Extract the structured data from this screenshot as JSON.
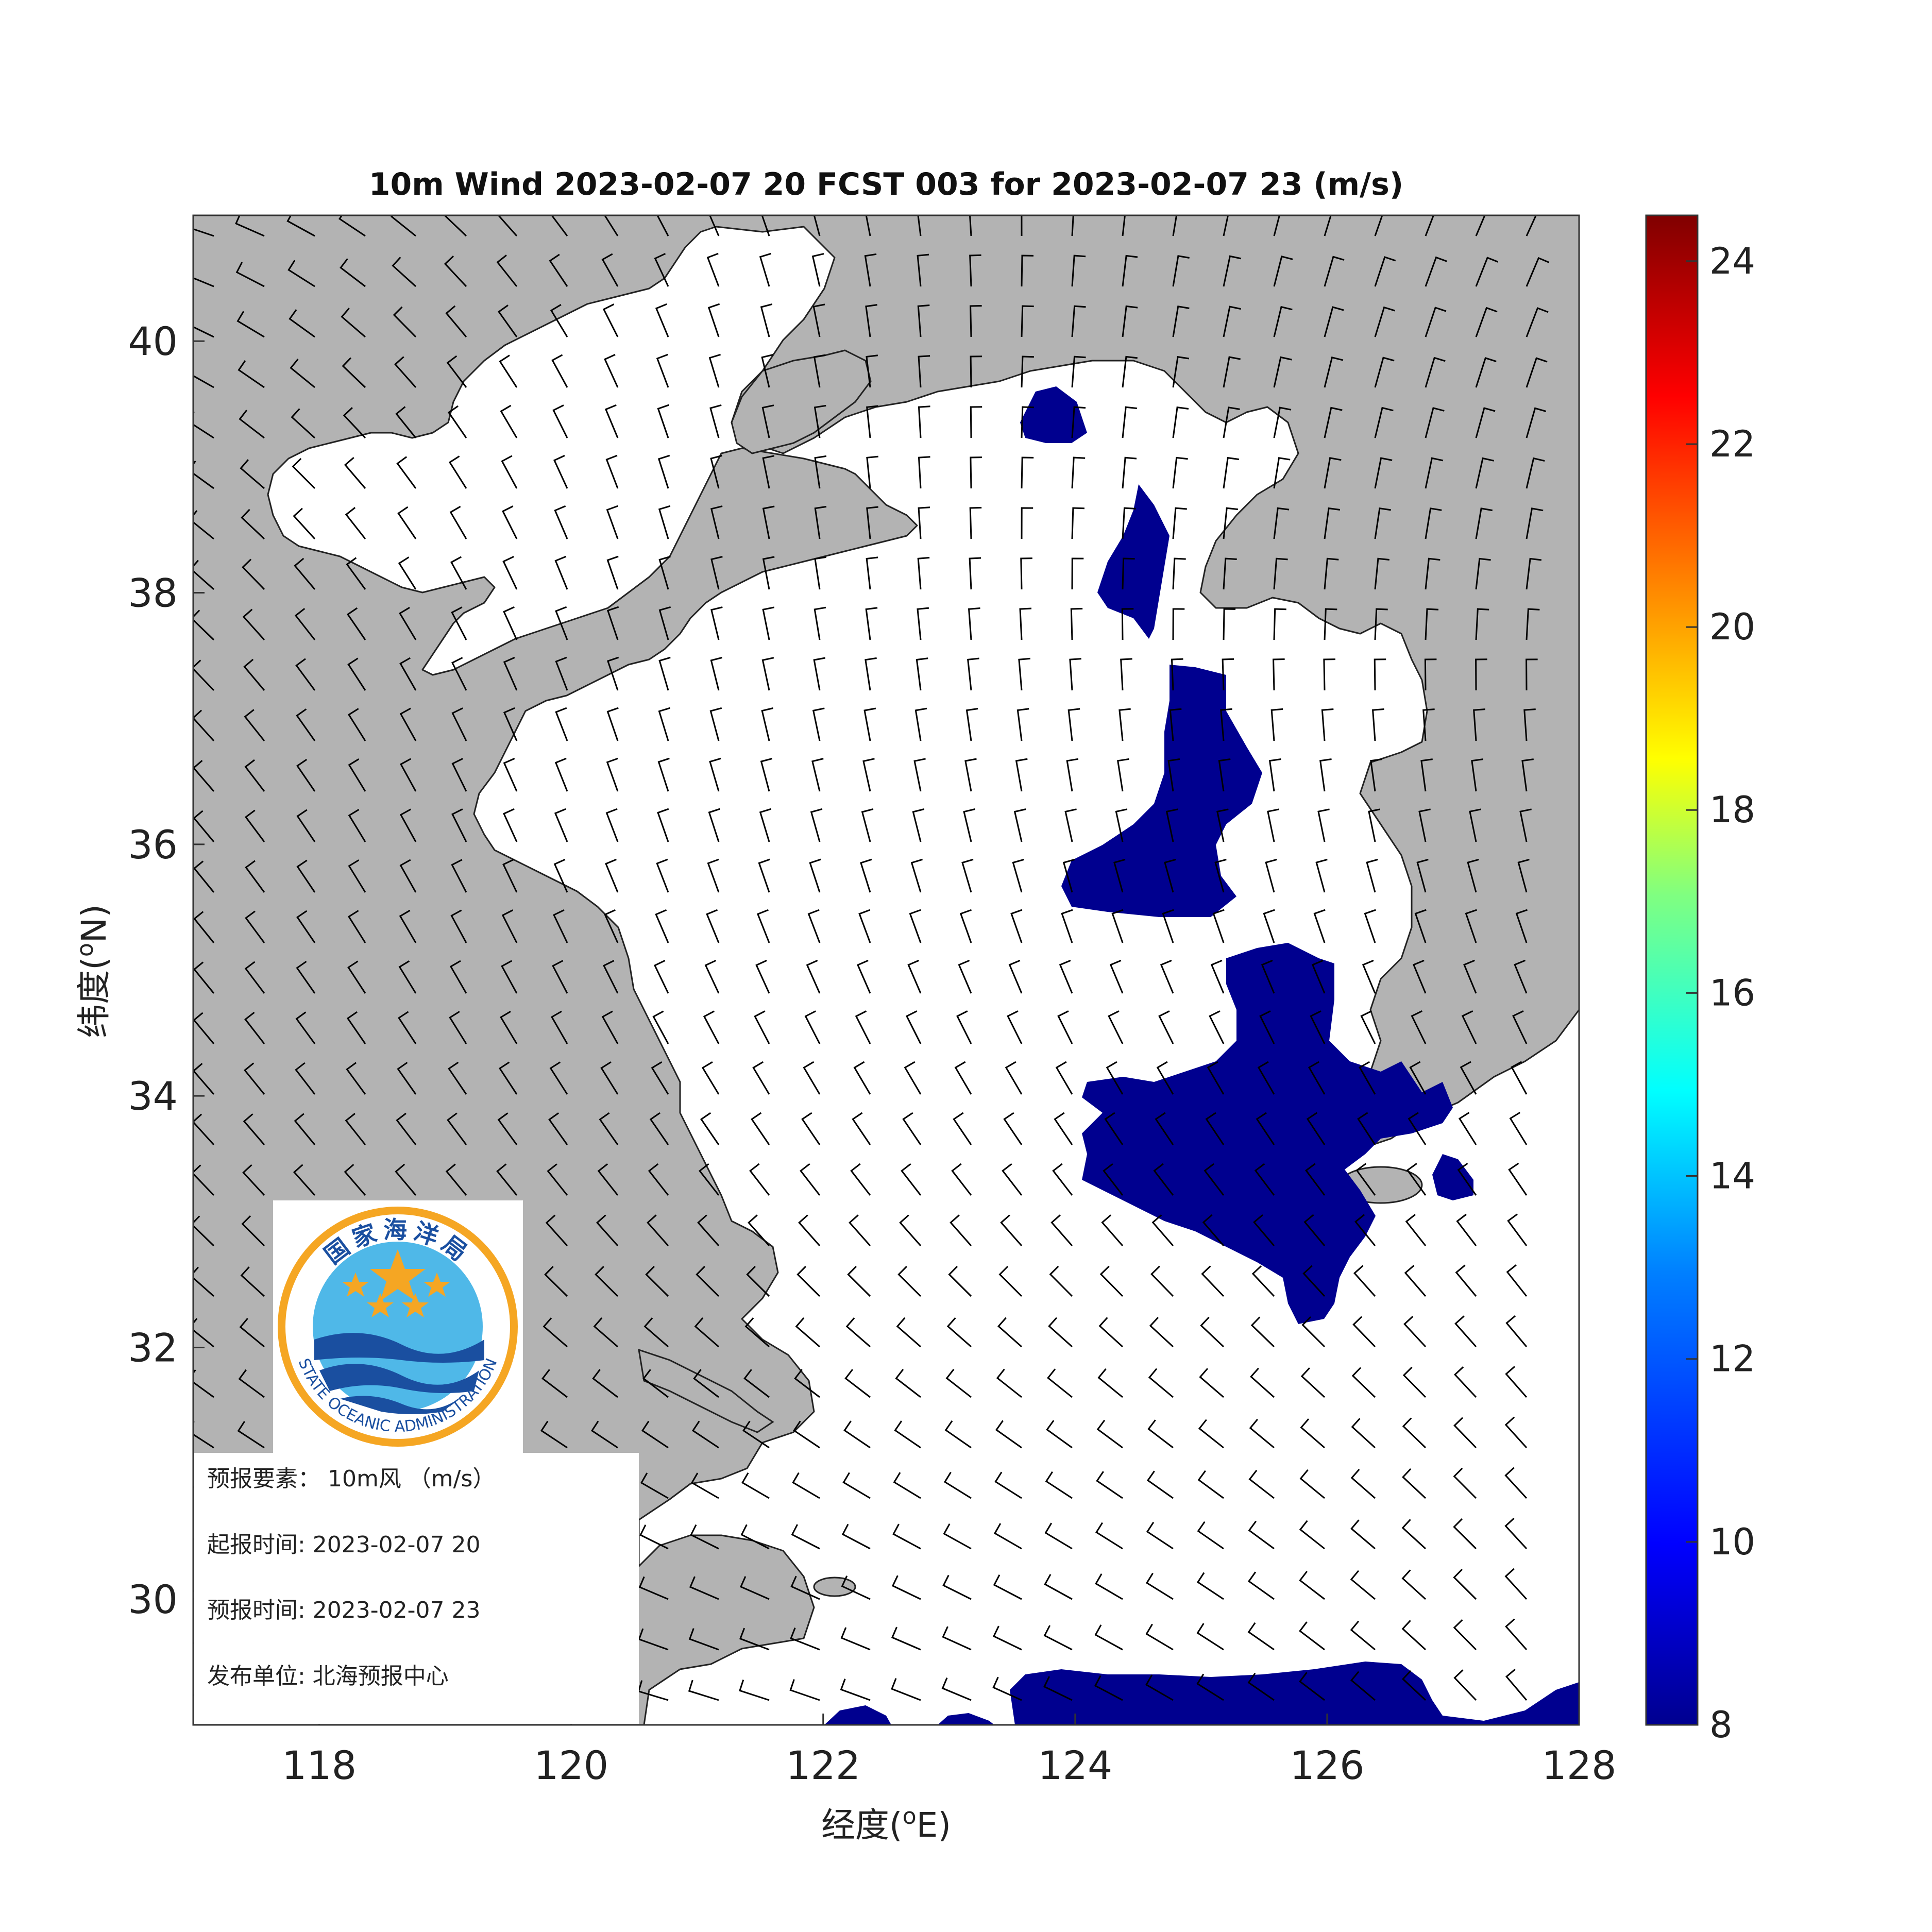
{
  "title": "10m Wind 2023-02-07 20 FCST 003 for 2023-02-07 23 (m/s)",
  "axes": {
    "xlabel": "经度(",
    "xlabel_sup": "o",
    "xlabel_end": "E)",
    "ylabel": "纬度(",
    "ylabel_sup": "o",
    "ylabel_end": "N)",
    "x_ticks": [
      "118",
      "120",
      "122",
      "124",
      "126",
      "128"
    ],
    "y_ticks": [
      "40",
      "38",
      "36",
      "34",
      "32",
      "30"
    ],
    "xlim": [
      117,
      128
    ],
    "ylim": [
      29,
      41
    ]
  },
  "colorbar": {
    "range": [
      8,
      24.5
    ],
    "ticks": [
      "24",
      "22",
      "20",
      "18",
      "16",
      "14",
      "12",
      "10",
      "8"
    ],
    "colormap": "jet",
    "colors": [
      "#00008f",
      "#0000ff",
      "#0080ff",
      "#00ffff",
      "#80ff80",
      "#ffff00",
      "#ff8000",
      "#ff0000",
      "#800000"
    ]
  },
  "logo": {
    "org_cn": "国家海洋局",
    "org_en": "STATE OCEANIC ADMINISTRATION",
    "colors": {
      "ring": "#f5a623",
      "sky": "#4fb8e8",
      "wave": "#1a4fa0",
      "star": "#f5a623"
    }
  },
  "info": {
    "element": "预报要素：  10m风  （m/s）",
    "start_time": "起报时间: 2023-02-07 20",
    "valid_time": "预报时间: 2023-02-07 23",
    "publisher": "发布单位:  北海预报中心"
  },
  "colors": {
    "land": "#b3b3b3",
    "sea": "#ffffff",
    "wind_8_10": "#00008f",
    "barb": "#000000"
  }
}
